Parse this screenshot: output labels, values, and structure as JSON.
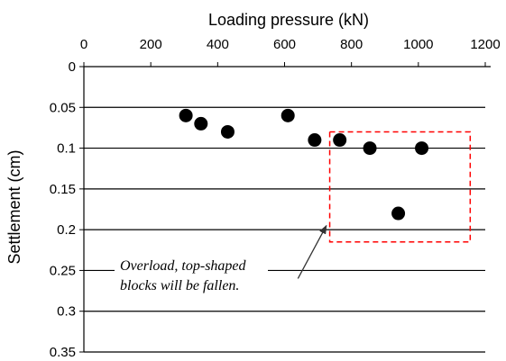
{
  "chart_data": {
    "type": "scatter",
    "title": "",
    "xlabel": "Loading pressure (kN)",
    "ylabel": "Settlement (cm)",
    "x_axis_position": "top",
    "y_axis_inverted": true,
    "xlim": [
      0,
      1200
    ],
    "ylim": [
      0,
      0.35
    ],
    "x_ticks": [
      0,
      200,
      400,
      600,
      800,
      1000,
      1200
    ],
    "x_tick_labels": [
      "0",
      "200",
      "400",
      "600",
      "800",
      "1000",
      "1200"
    ],
    "y_ticks": [
      0,
      0.05,
      0.1,
      0.15,
      0.2,
      0.25,
      0.3,
      0.35
    ],
    "y_tick_labels": [
      "0",
      "0.05",
      "0.1",
      "0.15",
      "0.2",
      "0.25",
      "0.3",
      "0.35"
    ],
    "grid": "horizontal",
    "series": [
      {
        "marker": "filled-circle",
        "color": "#000000",
        "points": [
          {
            "x": 305,
            "y": 0.06
          },
          {
            "x": 350,
            "y": 0.07
          },
          {
            "x": 430,
            "y": 0.08
          },
          {
            "x": 610,
            "y": 0.06
          },
          {
            "x": 690,
            "y": 0.09
          },
          {
            "x": 765,
            "y": 0.09
          },
          {
            "x": 855,
            "y": 0.1
          },
          {
            "x": 1010,
            "y": 0.1
          },
          {
            "x": 940,
            "y": 0.18
          }
        ]
      }
    ],
    "annotation": {
      "text_lines": [
        "Overload, top-shaped",
        "blocks will be fallen."
      ],
      "box_color": "#ff0000",
      "box_style": "dashed",
      "box_x_range": [
        735,
        1155
      ],
      "box_y_range": [
        0.08,
        0.215
      ],
      "arrow_from": {
        "x": 640,
        "y": 0.26
      },
      "arrow_to": {
        "x": 725,
        "y": 0.195
      }
    }
  }
}
